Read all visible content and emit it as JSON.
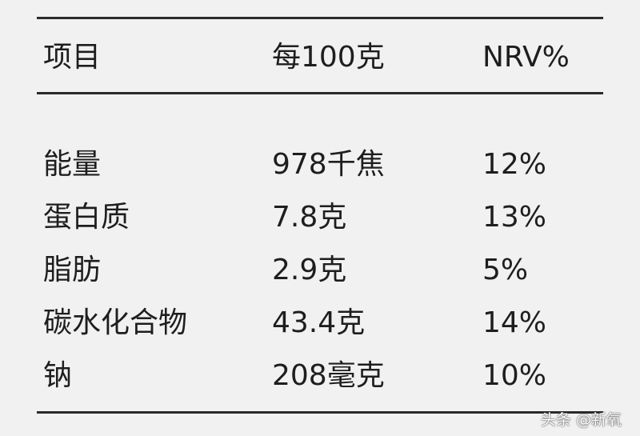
{
  "table": {
    "header": [
      "项目",
      "每100克",
      "NRV%"
    ],
    "rows": [
      [
        "能量",
        "978千焦",
        "12%"
      ],
      [
        "蛋白质",
        "7.8克",
        "13%"
      ],
      [
        "脂肪",
        "2.9克",
        "5%"
      ],
      [
        "碳水化合物",
        "43.4克",
        "14%"
      ],
      [
        "钠",
        "208毫克",
        "10%"
      ]
    ]
  },
  "watermark": "头条 @新氧"
}
